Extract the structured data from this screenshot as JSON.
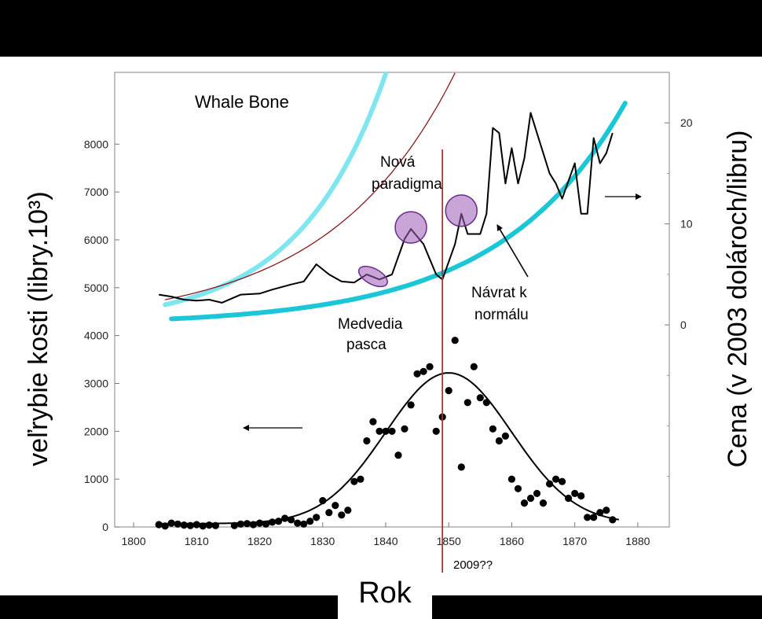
{
  "chart_data": {
    "type": "scatter",
    "title": "Whale Bone",
    "xlabel": "Rok",
    "ylabel_left": "veľrybie kosti (libry.10³)",
    "ylabel_right": "Cena (v 2003 dolároch/libru)",
    "x_ticks": [
      1800,
      1810,
      1820,
      1830,
      1840,
      1850,
      1860,
      1870,
      1880
    ],
    "y_left_ticks": [
      0,
      1000,
      2000,
      3000,
      4000,
      5000,
      6000,
      7000,
      8000
    ],
    "y_right_ticks": [
      0,
      10,
      20
    ],
    "xlim": [
      1797,
      1885
    ],
    "ylim_left": [
      0,
      9500
    ],
    "ylim_right": [
      -20,
      25
    ],
    "production_points": [
      [
        1804,
        50
      ],
      [
        1805,
        20
      ],
      [
        1806,
        80
      ],
      [
        1807,
        60
      ],
      [
        1808,
        40
      ],
      [
        1809,
        30
      ],
      [
        1810,
        50
      ],
      [
        1811,
        20
      ],
      [
        1812,
        40
      ],
      [
        1813,
        30
      ],
      [
        1816,
        30
      ],
      [
        1817,
        60
      ],
      [
        1818,
        70
      ],
      [
        1819,
        50
      ],
      [
        1820,
        80
      ],
      [
        1821,
        60
      ],
      [
        1822,
        100
      ],
      [
        1823,
        120
      ],
      [
        1824,
        180
      ],
      [
        1825,
        150
      ],
      [
        1826,
        80
      ],
      [
        1827,
        60
      ],
      [
        1828,
        120
      ],
      [
        1829,
        200
      ],
      [
        1830,
        550
      ],
      [
        1831,
        300
      ],
      [
        1832,
        450
      ],
      [
        1833,
        250
      ],
      [
        1834,
        350
      ],
      [
        1835,
        950
      ],
      [
        1836,
        1000
      ],
      [
        1837,
        1800
      ],
      [
        1838,
        2200
      ],
      [
        1839,
        2000
      ],
      [
        1840,
        2000
      ],
      [
        1841,
        2000
      ],
      [
        1842,
        1500
      ],
      [
        1843,
        2050
      ],
      [
        1844,
        2550
      ],
      [
        1845,
        3200
      ],
      [
        1846,
        3250
      ],
      [
        1847,
        3350
      ],
      [
        1848,
        2000
      ],
      [
        1849,
        2300
      ],
      [
        1850,
        2850
      ],
      [
        1851,
        3900
      ],
      [
        1852,
        1250
      ],
      [
        1853,
        2600
      ],
      [
        1854,
        3350
      ],
      [
        1855,
        2700
      ],
      [
        1856,
        2600
      ],
      [
        1857,
        2050
      ],
      [
        1858,
        1800
      ],
      [
        1859,
        1900
      ],
      [
        1860,
        1000
      ],
      [
        1861,
        800
      ],
      [
        1862,
        500
      ],
      [
        1863,
        600
      ],
      [
        1864,
        700
      ],
      [
        1865,
        500
      ],
      [
        1866,
        900
      ],
      [
        1867,
        1000
      ],
      [
        1868,
        950
      ],
      [
        1869,
        600
      ],
      [
        1870,
        700
      ],
      [
        1871,
        650
      ],
      [
        1872,
        200
      ],
      [
        1873,
        200
      ],
      [
        1874,
        300
      ],
      [
        1875,
        350
      ],
      [
        1876,
        150
      ]
    ],
    "production_fit": {
      "peak_year": 1850,
      "peak_value": 3150,
      "width": 10,
      "base": 70
    },
    "price_line": [
      [
        1804,
        3.0
      ],
      [
        1806,
        2.8
      ],
      [
        1808,
        2.5
      ],
      [
        1810,
        2.4
      ],
      [
        1812,
        2.5
      ],
      [
        1814,
        2.2
      ],
      [
        1817,
        3.0
      ],
      [
        1820,
        3.1
      ],
      [
        1822,
        3.5
      ],
      [
        1825,
        4.0
      ],
      [
        1827,
        4.3
      ],
      [
        1829,
        6.0
      ],
      [
        1831,
        5.0
      ],
      [
        1833,
        4.3
      ],
      [
        1835,
        4.2
      ],
      [
        1837,
        5.0
      ],
      [
        1839,
        4.5
      ],
      [
        1841,
        5.0
      ],
      [
        1843,
        8.5
      ],
      [
        1844,
        9.5
      ],
      [
        1846,
        8.0
      ],
      [
        1848,
        5.0
      ],
      [
        1849,
        4.5
      ],
      [
        1851,
        8.0
      ],
      [
        1852,
        11.0
      ],
      [
        1853,
        9.0
      ],
      [
        1855,
        9.0
      ],
      [
        1856,
        11.0
      ],
      [
        1857,
        19.5
      ],
      [
        1858,
        19.0
      ],
      [
        1859,
        14.0
      ],
      [
        1860,
        17.5
      ],
      [
        1861,
        14.0
      ],
      [
        1862,
        16.5
      ],
      [
        1863,
        21.0
      ],
      [
        1864,
        19.0
      ],
      [
        1866,
        15.0
      ],
      [
        1867,
        14.0
      ],
      [
        1868,
        12.5
      ],
      [
        1870,
        16.0
      ],
      [
        1871,
        11.0
      ],
      [
        1872,
        11.0
      ],
      [
        1873,
        18.5
      ],
      [
        1874,
        16.0
      ],
      [
        1875,
        17.0
      ],
      [
        1876,
        19.0
      ]
    ],
    "price_upper_curve": {
      "from": 1805,
      "to": 1880,
      "start": 2,
      "grow": 0.072,
      "scale": 1.0
    },
    "price_trend_curve": {
      "from": 1805,
      "to": 1876,
      "start": 2.5,
      "grow": 0.05,
      "scale": 1.0
    },
    "price_lower_curve": {
      "from": 1806,
      "to": 1878,
      "start": 0.6,
      "grow": 0.05,
      "scale": 1.0
    },
    "vline_year": 1849,
    "vline_label": "2009??",
    "annotations": {
      "nova_line1": "Nová",
      "nova_line2": "paradigma",
      "medvedia_line1": "Medvedia",
      "medvedia_line2": "pasca",
      "navrat_line1": "Návrat k",
      "navrat_line2": "normálu"
    },
    "colors": {
      "plot_bg": "#ffffff",
      "data": "#000000",
      "cyan_light": "#7fe6f0",
      "cyan": "#19c7d6",
      "trend": "#8b1a1a",
      "vline": "#b03030",
      "circle": "#9b59b6"
    }
  }
}
